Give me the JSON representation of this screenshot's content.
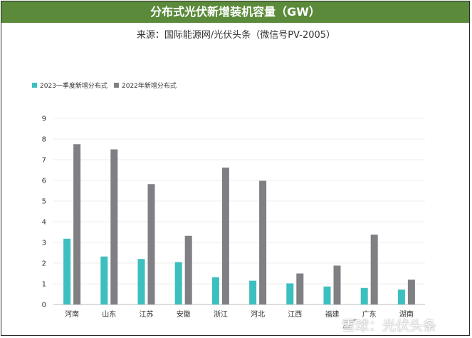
{
  "header": {
    "title": "分布式光伏新增装机容量（GW）",
    "source": "来源：国际能源网/光伏头条（微信号PV-2005）"
  },
  "watermark": {
    "text": "雪球：光伏头条",
    "icon": "snowball-icon"
  },
  "colors": {
    "title_bg": "#5a8a3a",
    "series_2023": "#3dbfbf",
    "series_2022": "#808084"
  },
  "chart_data": {
    "type": "bar",
    "title": "分布式光伏新增装机容量（GW）",
    "categories": [
      "河南",
      "山东",
      "江苏",
      "安徽",
      "浙江",
      "河北",
      "江西",
      "福建",
      "广东",
      "湖南"
    ],
    "series": [
      {
        "name": "2023一季度新增分布式",
        "color": "#3dbfbf",
        "values": [
          3.18,
          2.32,
          2.2,
          2.05,
          1.32,
          1.15,
          1.02,
          0.87,
          0.8,
          0.72
        ]
      },
      {
        "name": "2022年新增分布式",
        "color": "#808084",
        "values": [
          7.75,
          7.5,
          5.82,
          3.32,
          6.62,
          5.98,
          1.5,
          1.88,
          3.38,
          1.2
        ]
      }
    ],
    "yticks": [
      "0",
      "1",
      "2",
      "3",
      "4",
      "5",
      "6",
      "7",
      "8",
      "9"
    ],
    "ylim": [
      0,
      9
    ],
    "grid": true,
    "legend": "top-left"
  }
}
